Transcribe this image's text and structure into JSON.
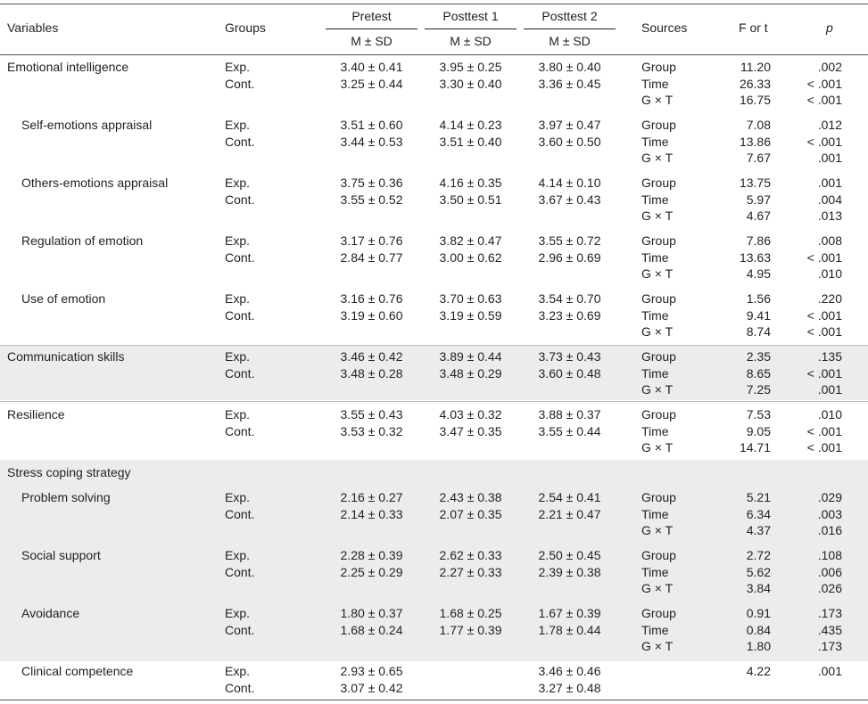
{
  "header": {
    "variables": "Variables",
    "groups": "Groups",
    "pretest": "Pretest",
    "posttest1": "Posttest 1",
    "posttest2": "Posttest 2",
    "msd": "M ± SD",
    "sources": "Sources",
    "f_or_t": "F or t",
    "p": "p"
  },
  "blocks": [
    {
      "variable": "Emotional intelligence",
      "indent": false,
      "shaded": false,
      "groups": [
        "Exp.",
        "Cont."
      ],
      "pretest": [
        "3.40 ± 0.41",
        "3.25 ± 0.44"
      ],
      "posttest1": [
        "3.95 ± 0.25",
        "3.30 ± 0.40"
      ],
      "posttest2": [
        "3.80 ± 0.40",
        "3.36 ± 0.45"
      ],
      "sources": [
        "Group",
        "Time",
        "G × T"
      ],
      "f": [
        "11.20",
        "26.33",
        "16.75"
      ],
      "p": [
        ".002",
        "< .001",
        "< .001"
      ]
    },
    {
      "variable": "Self-emotions appraisal",
      "indent": true,
      "shaded": false,
      "groups": [
        "Exp.",
        "Cont."
      ],
      "pretest": [
        "3.51 ± 0.60",
        "3.44 ± 0.53"
      ],
      "posttest1": [
        "4.14 ± 0.23",
        "3.51 ± 0.40"
      ],
      "posttest2": [
        "3.97 ± 0.47",
        "3.60 ± 0.50"
      ],
      "sources": [
        "Group",
        "Time",
        "G × T"
      ],
      "f": [
        "7.08",
        "13.86",
        "7.67"
      ],
      "p": [
        ".012",
        "< .001",
        ".001"
      ]
    },
    {
      "variable": "Others-emotions appraisal",
      "indent": true,
      "shaded": false,
      "groups": [
        "Exp.",
        "Cont."
      ],
      "pretest": [
        "3.75 ± 0.36",
        "3.55 ± 0.52"
      ],
      "posttest1": [
        "4.16 ± 0.35",
        "3.50 ± 0.51"
      ],
      "posttest2": [
        "4.14 ± 0.10",
        "3.67 ± 0.43"
      ],
      "sources": [
        "Group",
        "Time",
        "G × T"
      ],
      "f": [
        "13.75",
        "5.97",
        "4.67"
      ],
      "p": [
        ".001",
        ".004",
        ".013"
      ]
    },
    {
      "variable": "Regulation of emotion",
      "indent": true,
      "shaded": false,
      "groups": [
        "Exp.",
        "Cont."
      ],
      "pretest": [
        "3.17 ± 0.76",
        "2.84 ± 0.77"
      ],
      "posttest1": [
        "3.82 ± 0.47",
        "3.00 ± 0.62"
      ],
      "posttest2": [
        "3.55 ± 0.72",
        "2.96 ± 0.69"
      ],
      "sources": [
        "Group",
        "Time",
        "G × T"
      ],
      "f": [
        "7.86",
        "13.63",
        "4.95"
      ],
      "p": [
        ".008",
        "< .001",
        ".010"
      ]
    },
    {
      "variable": "Use of emotion",
      "indent": true,
      "shaded": false,
      "groups": [
        "Exp.",
        "Cont."
      ],
      "pretest": [
        "3.16 ± 0.76",
        "3.19 ± 0.60"
      ],
      "posttest1": [
        "3.70 ± 0.63",
        "3.19 ± 0.59"
      ],
      "posttest2": [
        "3.54 ± 0.70",
        "3.23 ± 0.69"
      ],
      "sources": [
        "Group",
        "Time",
        "G × T"
      ],
      "f": [
        "1.56",
        "9.41",
        "8.74"
      ],
      "p": [
        ".220",
        "< .001",
        "< .001"
      ]
    },
    {
      "variable": "Communication skills",
      "indent": false,
      "shaded": true,
      "groups": [
        "Exp.",
        "Cont."
      ],
      "pretest": [
        "3.46 ± 0.42",
        "3.48 ± 0.28"
      ],
      "posttest1": [
        "3.89 ± 0.44",
        "3.48 ± 0.29"
      ],
      "posttest2": [
        "3.73 ± 0.43",
        "3.60 ± 0.48"
      ],
      "sources": [
        "Group",
        "Time",
        "G × T"
      ],
      "f": [
        "2.35",
        "8.65",
        "7.25"
      ],
      "p": [
        ".135",
        "< .001",
        ".001"
      ]
    },
    {
      "variable": "Resilience",
      "indent": false,
      "shaded": false,
      "groups": [
        "Exp.",
        "Cont."
      ],
      "pretest": [
        "3.55 ± 0.43",
        "3.53 ± 0.32"
      ],
      "posttest1": [
        "4.03 ± 0.32",
        "3.47 ± 0.35"
      ],
      "posttest2": [
        "3.88 ± 0.37",
        "3.55 ± 0.44"
      ],
      "sources": [
        "Group",
        "Time",
        "G × T"
      ],
      "f": [
        "7.53",
        "9.05",
        "14.71"
      ],
      "p": [
        ".010",
        "< .001",
        "< .001"
      ]
    },
    {
      "variable": "Stress coping strategy",
      "indent": false,
      "shaded": true,
      "label_only": true
    },
    {
      "variable": "Problem solving",
      "indent": true,
      "shaded": true,
      "groups": [
        "Exp.",
        "Cont."
      ],
      "pretest": [
        "2.16 ± 0.27",
        "2.14 ± 0.33"
      ],
      "posttest1": [
        "2.43 ± 0.38",
        "2.07 ± 0.35"
      ],
      "posttest2": [
        "2.54 ± 0.41",
        "2.21 ± 0.47"
      ],
      "sources": [
        "Group",
        "Time",
        "G × T"
      ],
      "f": [
        "5.21",
        "6.34",
        "4.37"
      ],
      "p": [
        ".029",
        ".003",
        ".016"
      ]
    },
    {
      "variable": "Social support",
      "indent": true,
      "shaded": true,
      "groups": [
        "Exp.",
        "Cont."
      ],
      "pretest": [
        "2.28 ± 0.39",
        "2.25 ± 0.29"
      ],
      "posttest1": [
        "2.62 ± 0.33",
        "2.27 ± 0.33"
      ],
      "posttest2": [
        "2.50 ± 0.45",
        "2.39 ± 0.38"
      ],
      "sources": [
        "Group",
        "Time",
        "G × T"
      ],
      "f": [
        "2.72",
        "5.62",
        "3.84"
      ],
      "p": [
        ".108",
        ".006",
        ".026"
      ]
    },
    {
      "variable": "Avoidance",
      "indent": true,
      "shaded": true,
      "groups": [
        "Exp.",
        "Cont."
      ],
      "pretest": [
        "1.80 ± 0.37",
        "1.68 ± 0.24"
      ],
      "posttest1": [
        "1.68 ± 0.25",
        "1.77 ± 0.39"
      ],
      "posttest2": [
        "1.67 ± 0.39",
        "1.78 ± 0.44"
      ],
      "sources": [
        "Group",
        "Time",
        "G × T"
      ],
      "f": [
        "0.91",
        "0.84",
        "1.80"
      ],
      "p": [
        ".173",
        ".435",
        ".173"
      ]
    },
    {
      "variable": "Clinical competence",
      "indent": true,
      "shaded": false,
      "groups": [
        "Exp.",
        "Cont."
      ],
      "pretest": [
        "2.93 ± 0.65",
        "3.07 ± 0.42"
      ],
      "posttest1": [
        "",
        ""
      ],
      "posttest2": [
        "3.46 ± 0.46",
        "3.27 ± 0.48"
      ],
      "sources": [],
      "f": [
        "4.22"
      ],
      "p": [
        ".001"
      ]
    }
  ]
}
